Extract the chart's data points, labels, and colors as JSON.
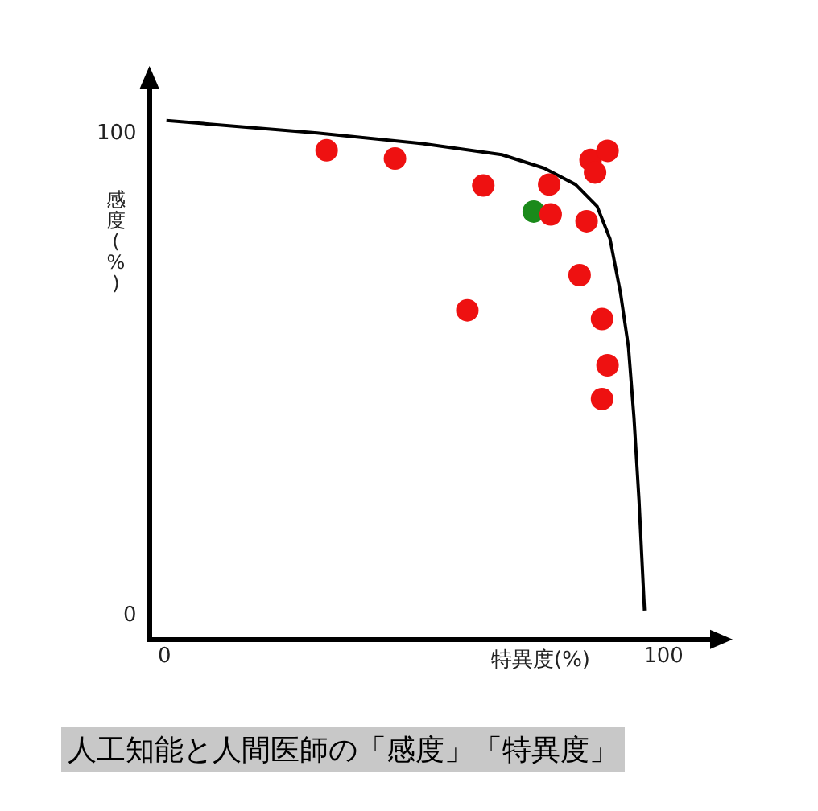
{
  "chart_data": {
    "type": "scatter",
    "xlabel": "特異度(%)",
    "ylabel": "感度(%)",
    "annotations": [
      "人工知能と人間医師の「感度」「特異度」"
    ],
    "xlim": [
      -3,
      110
    ],
    "ylim": [
      -5,
      110
    ],
    "xticks": [
      0,
      100
    ],
    "yticks": [
      0,
      100
    ],
    "grid": false,
    "legend": false,
    "marker": "circle",
    "series": [
      {
        "type": "scatter",
        "color": "#ee1111",
        "x": [
          32.5,
          46.2,
          63.9,
          77.1,
          77.4,
          84.6,
          85.4,
          88.8,
          86.3,
          83.2,
          60.7,
          87.7,
          88.8,
          87.7
        ],
        "values": [
          96.5,
          94.8,
          89.2,
          89.4,
          83.2,
          81.8,
          94.5,
          96.4,
          91.9,
          70.6,
          63.3,
          61.5,
          51.9,
          44.9
        ]
      },
      {
        "type": "scatter",
        "color": "#1a8a1a",
        "x": [
          74.0
        ],
        "values": [
          83.8
        ]
      },
      {
        "type": "line",
        "color": "#000000",
        "marker": "none",
        "line_style": "solid",
        "x": [
          0.4,
          30.6,
          51.7,
          67.6,
          76.1,
          82.4,
          86.7,
          89.3,
          91.4,
          93.0,
          94.1,
          95.1,
          96.2
        ],
        "values": [
          102.7,
          100.1,
          97.9,
          95.6,
          92.8,
          89.4,
          84.9,
          78.1,
          66.9,
          55.6,
          41.0,
          24.1,
          1.0
        ]
      }
    ]
  }
}
